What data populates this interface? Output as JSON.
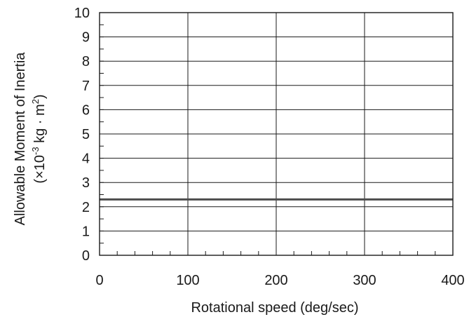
{
  "chart_data": {
    "type": "line",
    "title": "",
    "xlabel": "Rotational speed  (deg/sec)",
    "ylabel_line1": "Allowable Moment of Inertia",
    "ylabel_line2": {
      "prefix": "(×10",
      "exp": "-3",
      "mid": " kg · m",
      "exp2": "2",
      "suffix": ")"
    },
    "xlim": [
      0,
      400
    ],
    "ylim": [
      0,
      10
    ],
    "x_ticks": [
      0,
      100,
      200,
      300,
      400
    ],
    "y_ticks": [
      0,
      1,
      2,
      3,
      4,
      5,
      6,
      7,
      8,
      9,
      10
    ],
    "x_minor_step": 20,
    "y_minor_step": 0.5,
    "grid": true,
    "legend": "none",
    "series": [
      {
        "x": [
          0,
          400
        ],
        "values": [
          2.3,
          2.3
        ],
        "color": "#4d4d4d"
      }
    ]
  }
}
